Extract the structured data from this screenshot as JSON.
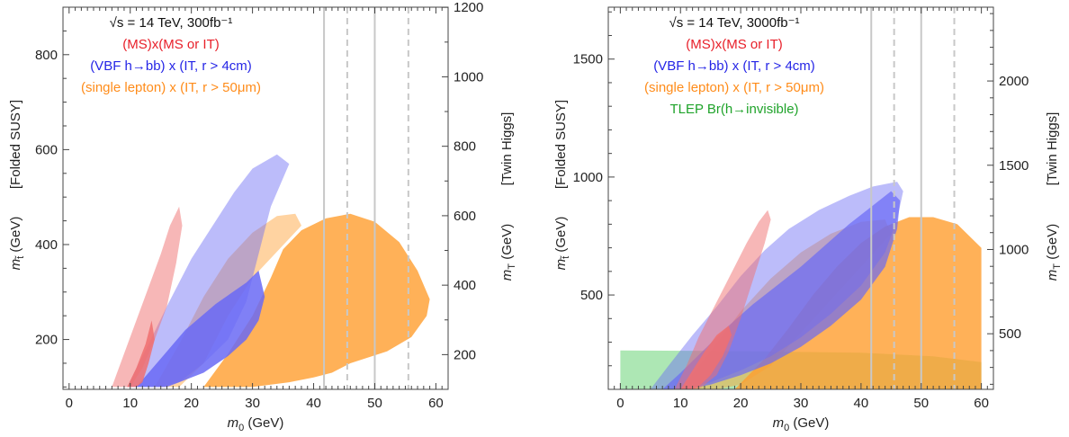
{
  "chart_data": [
    {
      "type": "area",
      "panel": "left",
      "xlabel": "m0 (GeV)",
      "ylabel_left": "m_t~ (GeV)",
      "ylabel_left_tag": "[Folded SUSY]",
      "ylabel_right": "m_T (GeV)",
      "ylabel_right_tag": "[Twin Higgs]",
      "xlim": [
        -1,
        62
      ],
      "ylim": [
        95,
        900
      ],
      "x_ticks": [
        "0",
        "10",
        "20",
        "30",
        "40",
        "50",
        "60"
      ],
      "y_ticks": [
        "200",
        "400",
        "600",
        "800"
      ],
      "y2_ticks": [
        "200",
        "400",
        "600",
        "800",
        "1000",
        "1200"
      ],
      "legend": {
        "header": "√s = 14 TeV, 300fb⁻¹",
        "entries": [
          "(MS)x(MS or IT)",
          "(VBF h→bb) x (IT, r > 4cm)",
          "(single lepton) x (IT, r > 50μm)"
        ]
      },
      "vertical_lines": [
        {
          "x": 41.7,
          "style": "solid"
        },
        {
          "x": 45.5,
          "style": "dashed"
        },
        {
          "x": 50.0,
          "style": "solid"
        },
        {
          "x": 55.5,
          "style": "dashed"
        }
      ],
      "series": [
        {
          "name": "(single lepton) x (IT, r > 50μm)",
          "color": "#ff9d2e",
          "light": [
            [
              14,
              100
            ],
            [
              18,
              190
            ],
            [
              22,
              290
            ],
            [
              26,
              370
            ],
            [
              30,
              425
            ],
            [
              34,
              460
            ],
            [
              37,
              465
            ],
            [
              38,
              440
            ],
            [
              30,
              330
            ],
            [
              26,
              250
            ],
            [
              22,
              150
            ],
            [
              18,
              100
            ]
          ],
          "dark": [
            [
              22,
              100
            ],
            [
              26,
              170
            ],
            [
              30,
              250
            ],
            [
              33,
              330
            ],
            [
              35,
              390
            ],
            [
              38,
              430
            ],
            [
              42,
              455
            ],
            [
              46,
              465
            ],
            [
              50,
              448
            ],
            [
              54,
              405
            ],
            [
              57,
              345
            ],
            [
              59,
              285
            ],
            [
              58.5,
              250
            ],
            [
              56,
              205
            ],
            [
              52,
              175
            ],
            [
              46,
              150
            ],
            [
              43,
              130
            ],
            [
              40,
              120
            ],
            [
              36,
              110
            ],
            [
              30,
              100
            ]
          ],
          "light_alpha": 0.45,
          "dark_alpha": 0.8
        },
        {
          "name": "(VBF h→bb) x (IT, r > 4cm)",
          "color": "#6a6af5",
          "light": [
            [
              9.5,
              100
            ],
            [
              13,
              190
            ],
            [
              16,
              270
            ],
            [
              20,
              370
            ],
            [
              24,
              450
            ],
            [
              27,
              510
            ],
            [
              30,
              560
            ],
            [
              34,
              590
            ],
            [
              36,
              570
            ],
            [
              33,
              480
            ],
            [
              31,
              380
            ],
            [
              29,
              280
            ],
            [
              26,
              200
            ],
            [
              22,
              150
            ],
            [
              18,
              110
            ],
            [
              15,
              100
            ]
          ],
          "dark": [
            [
              11,
              100
            ],
            [
              15,
              160
            ],
            [
              19,
              220
            ],
            [
              24,
              275
            ],
            [
              29,
              320
            ],
            [
              31,
              345
            ],
            [
              32,
              290
            ],
            [
              31,
              240
            ],
            [
              29,
              200
            ],
            [
              26,
              165
            ],
            [
              22,
              130
            ],
            [
              18,
              110
            ],
            [
              16,
              100
            ]
          ],
          "light_alpha": 0.45,
          "dark_alpha": 0.85
        },
        {
          "name": "(MS)x(MS or IT)",
          "color": "#f07070",
          "light": [
            [
              7,
              100
            ],
            [
              9,
              170
            ],
            [
              11,
              240
            ],
            [
              13,
              310
            ],
            [
              15,
              380
            ],
            [
              16.5,
              440
            ],
            [
              18,
              480
            ],
            [
              18.5,
              440
            ],
            [
              17.5,
              360
            ],
            [
              16,
              270
            ],
            [
              14,
              200
            ],
            [
              12,
              140
            ],
            [
              10,
              100
            ]
          ],
          "dark": [
            [
              9.5,
              100
            ],
            [
              11,
              140
            ],
            [
              12.5,
              190
            ],
            [
              13.5,
              240
            ],
            [
              14,
              200
            ],
            [
              13,
              150
            ],
            [
              12,
              110
            ],
            [
              11,
              100
            ]
          ],
          "light_alpha": 0.5,
          "dark_alpha": 0.85
        }
      ]
    },
    {
      "type": "area",
      "panel": "right",
      "xlabel": "m0 (GeV)",
      "ylabel_left": "m_t~ (GeV)",
      "ylabel_left_tag": "[Folded SUSY]",
      "ylabel_right": "m_T (GeV)",
      "ylabel_right_tag": "[Twin Higgs]",
      "xlim": [
        -2,
        62
      ],
      "ylim": [
        100,
        1720
      ],
      "x_ticks": [
        "0",
        "10",
        "20",
        "30",
        "40",
        "50",
        "60"
      ],
      "y_ticks": [
        "500",
        "1000",
        "1500"
      ],
      "y2_ticks": [
        "500",
        "1000",
        "1500",
        "2000"
      ],
      "legend": {
        "header": "√s = 14 TeV, 3000fb⁻¹",
        "entries": [
          "(MS)x(MS or IT)",
          "(VBF h→bb) x (IT, r > 4cm)",
          "(single lepton) x (IT, r > 50μm)",
          "TLEP Br(h→invisible)"
        ]
      },
      "vertical_lines": [
        {
          "x": 41.7,
          "style": "solid"
        },
        {
          "x": 45.5,
          "style": "dashed"
        },
        {
          "x": 50.0,
          "style": "solid"
        },
        {
          "x": 55.5,
          "style": "dashed"
        }
      ],
      "series": [
        {
          "name": "TLEP Br(h→invisible)",
          "color": "#5ccf6a",
          "light": [
            [
              0,
              100
            ],
            [
              0,
              265
            ],
            [
              20,
              262
            ],
            [
              40,
              255
            ],
            [
              52,
              240
            ],
            [
              60,
              215
            ],
            [
              60,
              100
            ]
          ],
          "dark": [],
          "light_alpha": 0.5,
          "dark_alpha": 0.8
        },
        {
          "name": "(single lepton) x (IT, r > 50μm)",
          "color": "#ff9d2e",
          "light": [
            [
              10,
              100
            ],
            [
              15,
              260
            ],
            [
              20,
              430
            ],
            [
              25,
              570
            ],
            [
              30,
              680
            ],
            [
              35,
              760
            ],
            [
              40,
              810
            ],
            [
              44,
              820
            ],
            [
              45,
              760
            ],
            [
              40,
              620
            ],
            [
              35,
              480
            ],
            [
              30,
              340
            ],
            [
              25,
              200
            ],
            [
              20,
              120
            ],
            [
              16,
              100
            ]
          ],
          "dark": [
            [
              19,
              100
            ],
            [
              24,
              230
            ],
            [
              28,
              360
            ],
            [
              32,
              500
            ],
            [
              36,
              620
            ],
            [
              40,
              720
            ],
            [
              44,
              790
            ],
            [
              48,
              830
            ],
            [
              52,
              830
            ],
            [
              56,
              800
            ],
            [
              60,
              700
            ],
            [
              60,
              100
            ],
            [
              28,
              100
            ]
          ],
          "light_alpha": 0.45,
          "dark_alpha": 0.8
        },
        {
          "name": "(VBF h→bb) x (IT, r > 4cm)",
          "color": "#6a6af5",
          "light": [
            [
              5,
              100
            ],
            [
              8,
              200
            ],
            [
              12,
              330
            ],
            [
              16,
              450
            ],
            [
              20,
              580
            ],
            [
              24,
              690
            ],
            [
              28,
              780
            ],
            [
              33,
              860
            ],
            [
              38,
              920
            ],
            [
              42,
              960
            ],
            [
              46,
              980
            ],
            [
              47,
              940
            ],
            [
              46,
              820
            ],
            [
              44,
              680
            ],
            [
              40,
              540
            ],
            [
              35,
              420
            ],
            [
              30,
              320
            ],
            [
              25,
              240
            ],
            [
              20,
              180
            ],
            [
              15,
              130
            ],
            [
              10,
              100
            ]
          ],
          "dark": [
            [
              7,
              100
            ],
            [
              10,
              170
            ],
            [
              14,
              270
            ],
            [
              18,
              370
            ],
            [
              22,
              460
            ],
            [
              26,
              540
            ],
            [
              30,
              620
            ],
            [
              34,
              710
            ],
            [
              38,
              800
            ],
            [
              42,
              880
            ],
            [
              45,
              940
            ],
            [
              46.5,
              900
            ],
            [
              46,
              780
            ],
            [
              44,
              620
            ],
            [
              40,
              480
            ],
            [
              35,
              370
            ],
            [
              30,
              280
            ],
            [
              25,
              210
            ],
            [
              20,
              160
            ],
            [
              15,
              120
            ],
            [
              11,
              100
            ]
          ],
          "light_alpha": 0.45,
          "dark_alpha": 0.7
        },
        {
          "name": "(MS)x(MS or IT)",
          "color": "#f07070",
          "light": [
            [
              9,
              100
            ],
            [
              11,
              200
            ],
            [
              13,
              320
            ],
            [
              15,
              420
            ],
            [
              17,
              520
            ],
            [
              19,
              620
            ],
            [
              21,
              720
            ],
            [
              23,
              810
            ],
            [
              24.5,
              860
            ],
            [
              25,
              820
            ],
            [
              24,
              720
            ],
            [
              22,
              560
            ],
            [
              20,
              400
            ],
            [
              18,
              260
            ],
            [
              16,
              160
            ],
            [
              13,
              100
            ]
          ],
          "dark": [
            [
              10,
              100
            ],
            [
              12,
              180
            ],
            [
              14,
              260
            ],
            [
              16,
              330
            ],
            [
              18,
              370
            ],
            [
              18.5,
              330
            ],
            [
              17,
              240
            ],
            [
              15,
              160
            ],
            [
              13,
              110
            ],
            [
              12,
              100
            ]
          ],
          "light_alpha": 0.5,
          "dark_alpha": 0.85
        }
      ]
    }
  ]
}
